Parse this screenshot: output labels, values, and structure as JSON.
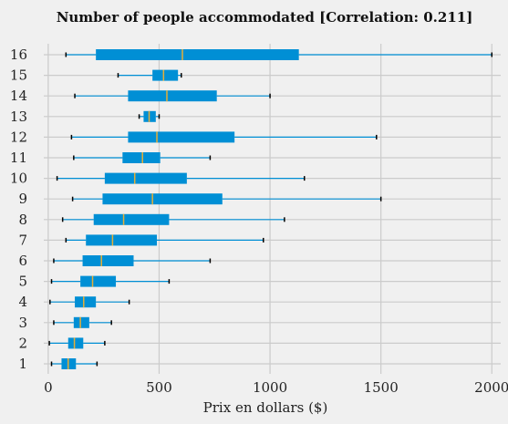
{
  "chart_data": {
    "type": "boxplot",
    "orientation": "horizontal",
    "title": "Number of people accommodated  [Correlation: 0.211]",
    "xlabel": "Prix en dollars ($)",
    "ylabel": "",
    "xlim": [
      -20,
      2040
    ],
    "xticks": [
      0,
      500,
      1000,
      1500,
      2000
    ],
    "grid": true,
    "colors": {
      "box": "#008fd5",
      "median": "#e5ae38",
      "whisker": "#008fd5",
      "cap": "#000000",
      "background": "#f0f0f0",
      "grid": "#cbcbcb"
    },
    "categories": [
      "1",
      "2",
      "3",
      "4",
      "5",
      "6",
      "7",
      "8",
      "9",
      "10",
      "11",
      "12",
      "13",
      "14",
      "15",
      "16"
    ],
    "boxes": [
      {
        "label": "1",
        "whislo": 15,
        "q1": 60,
        "med": 90,
        "q3": 125,
        "whishi": 220
      },
      {
        "label": "2",
        "whislo": 5,
        "q1": 90,
        "med": 118,
        "q3": 158,
        "whishi": 255
      },
      {
        "label": "3",
        "whislo": 25,
        "q1": 115,
        "med": 145,
        "q3": 185,
        "whishi": 285
      },
      {
        "label": "4",
        "whislo": 8,
        "q1": 120,
        "med": 160,
        "q3": 215,
        "whishi": 365
      },
      {
        "label": "5",
        "whislo": 15,
        "q1": 145,
        "med": 200,
        "q3": 305,
        "whishi": 545
      },
      {
        "label": "6",
        "whislo": 25,
        "q1": 155,
        "med": 240,
        "q3": 385,
        "whishi": 730
      },
      {
        "label": "7",
        "whislo": 80,
        "q1": 170,
        "med": 290,
        "q3": 490,
        "whishi": 970
      },
      {
        "label": "8",
        "whislo": 65,
        "q1": 205,
        "med": 340,
        "q3": 545,
        "whishi": 1065
      },
      {
        "label": "9",
        "whislo": 110,
        "q1": 245,
        "med": 470,
        "q3": 785,
        "whishi": 1500
      },
      {
        "label": "10",
        "whislo": 40,
        "q1": 255,
        "med": 390,
        "q3": 625,
        "whishi": 1155
      },
      {
        "label": "11",
        "whislo": 115,
        "q1": 335,
        "med": 425,
        "q3": 505,
        "whishi": 730
      },
      {
        "label": "12",
        "whislo": 105,
        "q1": 360,
        "med": 490,
        "q3": 840,
        "whishi": 1480
      },
      {
        "label": "13",
        "whislo": 410,
        "q1": 430,
        "med": 455,
        "q3": 485,
        "whishi": 500
      },
      {
        "label": "14",
        "whislo": 120,
        "q1": 360,
        "med": 535,
        "q3": 760,
        "whishi": 1000
      },
      {
        "label": "15",
        "whislo": 315,
        "q1": 470,
        "med": 520,
        "q3": 585,
        "whishi": 600
      },
      {
        "label": "16",
        "whislo": 80,
        "q1": 215,
        "med": 605,
        "q3": 1130,
        "whishi": 2000
      }
    ]
  }
}
